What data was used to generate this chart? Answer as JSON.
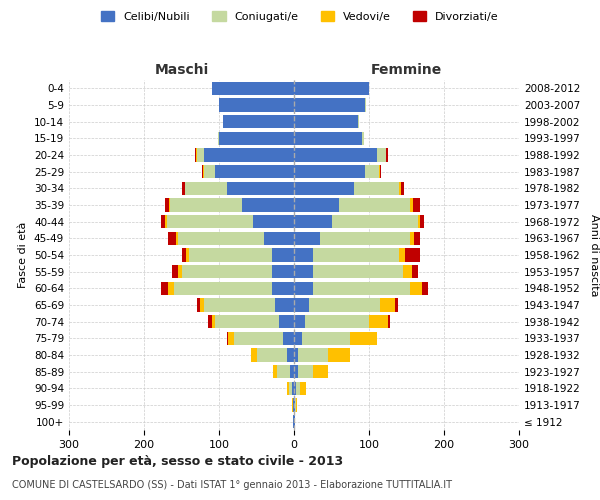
{
  "age_groups": [
    "100+",
    "95-99",
    "90-94",
    "85-89",
    "80-84",
    "75-79",
    "70-74",
    "65-69",
    "60-64",
    "55-59",
    "50-54",
    "45-49",
    "40-44",
    "35-39",
    "30-34",
    "25-29",
    "20-24",
    "15-19",
    "10-14",
    "5-9",
    "0-4"
  ],
  "birth_years": [
    "≤ 1912",
    "1913-1917",
    "1918-1922",
    "1923-1927",
    "1928-1932",
    "1933-1937",
    "1938-1942",
    "1943-1947",
    "1948-1952",
    "1953-1957",
    "1958-1962",
    "1963-1967",
    "1968-1972",
    "1973-1977",
    "1978-1982",
    "1983-1987",
    "1988-1992",
    "1993-1997",
    "1998-2002",
    "2003-2007",
    "2008-2012"
  ],
  "male_celibe": [
    1,
    1,
    3,
    5,
    10,
    15,
    20,
    25,
    30,
    30,
    30,
    40,
    55,
    70,
    90,
    105,
    120,
    100,
    95,
    100,
    110
  ],
  "male_coniugato": [
    0,
    1,
    4,
    18,
    40,
    65,
    85,
    95,
    130,
    120,
    110,
    115,
    115,
    95,
    55,
    15,
    10,
    2,
    0,
    0,
    0
  ],
  "male_vedovo": [
    0,
    1,
    3,
    5,
    8,
    8,
    5,
    5,
    8,
    5,
    4,
    3,
    2,
    2,
    1,
    1,
    1,
    0,
    0,
    0,
    0
  ],
  "male_divorziato": [
    0,
    0,
    0,
    0,
    0,
    2,
    5,
    5,
    10,
    8,
    5,
    10,
    5,
    5,
    3,
    2,
    1,
    0,
    0,
    0,
    0
  ],
  "female_celibe": [
    1,
    1,
    3,
    5,
    5,
    10,
    15,
    20,
    25,
    25,
    25,
    35,
    50,
    60,
    80,
    95,
    110,
    90,
    85,
    95,
    100
  ],
  "female_coniugata": [
    0,
    1,
    5,
    20,
    40,
    65,
    85,
    95,
    130,
    120,
    115,
    120,
    115,
    95,
    60,
    18,
    12,
    3,
    1,
    1,
    0
  ],
  "female_vedova": [
    0,
    2,
    8,
    20,
    30,
    35,
    25,
    20,
    15,
    12,
    8,
    5,
    3,
    3,
    2,
    1,
    1,
    0,
    0,
    0,
    0
  ],
  "female_divorziata": [
    0,
    0,
    0,
    0,
    0,
    0,
    3,
    3,
    8,
    8,
    20,
    8,
    5,
    10,
    5,
    2,
    2,
    0,
    0,
    0,
    0
  ],
  "color_celibe": "#4472c4",
  "color_coniugato": "#c5d9a0",
  "color_vedovo": "#ffc000",
  "color_divorziato": "#c00000",
  "title1": "Popolazione per età, sesso e stato civile - 2013",
  "title2": "COMUNE DI CASTELSARDO (SS) - Dati ISTAT 1° gennaio 2013 - Elaborazione TUTTITALIA.IT",
  "xlabel_left": "Maschi",
  "xlabel_right": "Femmine",
  "ylabel_left": "Fasce di età",
  "ylabel_right": "Anni di nascita",
  "xlim": 300,
  "bg_color": "#ffffff",
  "grid_color": "#cccccc"
}
